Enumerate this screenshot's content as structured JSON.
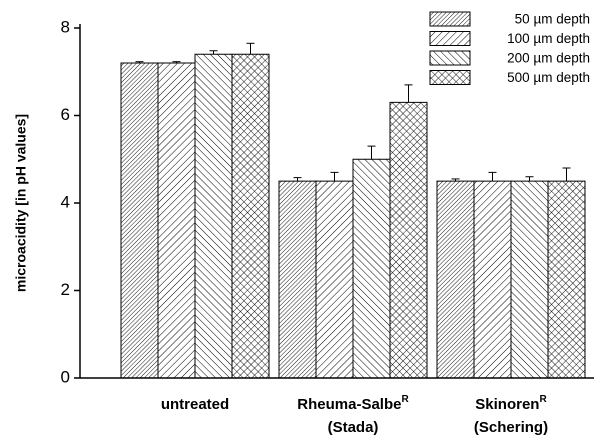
{
  "chart_data": {
    "type": "bar",
    "y_label": "microacidity [in pH values]",
    "categories": [
      "untreated",
      "Rheuma-Salbe",
      "Skinoren"
    ],
    "category_superscripts": [
      null,
      "R",
      "R"
    ],
    "category_sublabels": [
      null,
      "(Stada)",
      "(Schering)"
    ],
    "series": [
      {
        "name": "50 µm depth",
        "color": "#000000",
        "pattern": "fine-diagonal",
        "values": [
          7.2,
          4.5,
          4.5
        ],
        "errors": [
          0.03,
          0.08,
          0.05
        ]
      },
      {
        "name": "100 µm depth",
        "color": "#000000",
        "pattern": "diagonal",
        "values": [
          7.2,
          4.5,
          4.5
        ],
        "errors": [
          0.03,
          0.2,
          0.2
        ]
      },
      {
        "name": "200 µm depth",
        "color": "#000000",
        "pattern": "back-diagonal",
        "values": [
          7.4,
          5.0,
          4.5
        ],
        "errors": [
          0.08,
          0.3,
          0.1
        ]
      },
      {
        "name": "500 µm depth",
        "color": "#000000",
        "pattern": "crosshatch",
        "values": [
          7.4,
          6.3,
          4.5
        ],
        "errors": [
          0.25,
          0.4,
          0.3
        ]
      }
    ],
    "ylim": [
      0,
      8
    ],
    "yticks": [
      0,
      2,
      4,
      6,
      8
    ],
    "grid": false,
    "legend": "top-right"
  }
}
